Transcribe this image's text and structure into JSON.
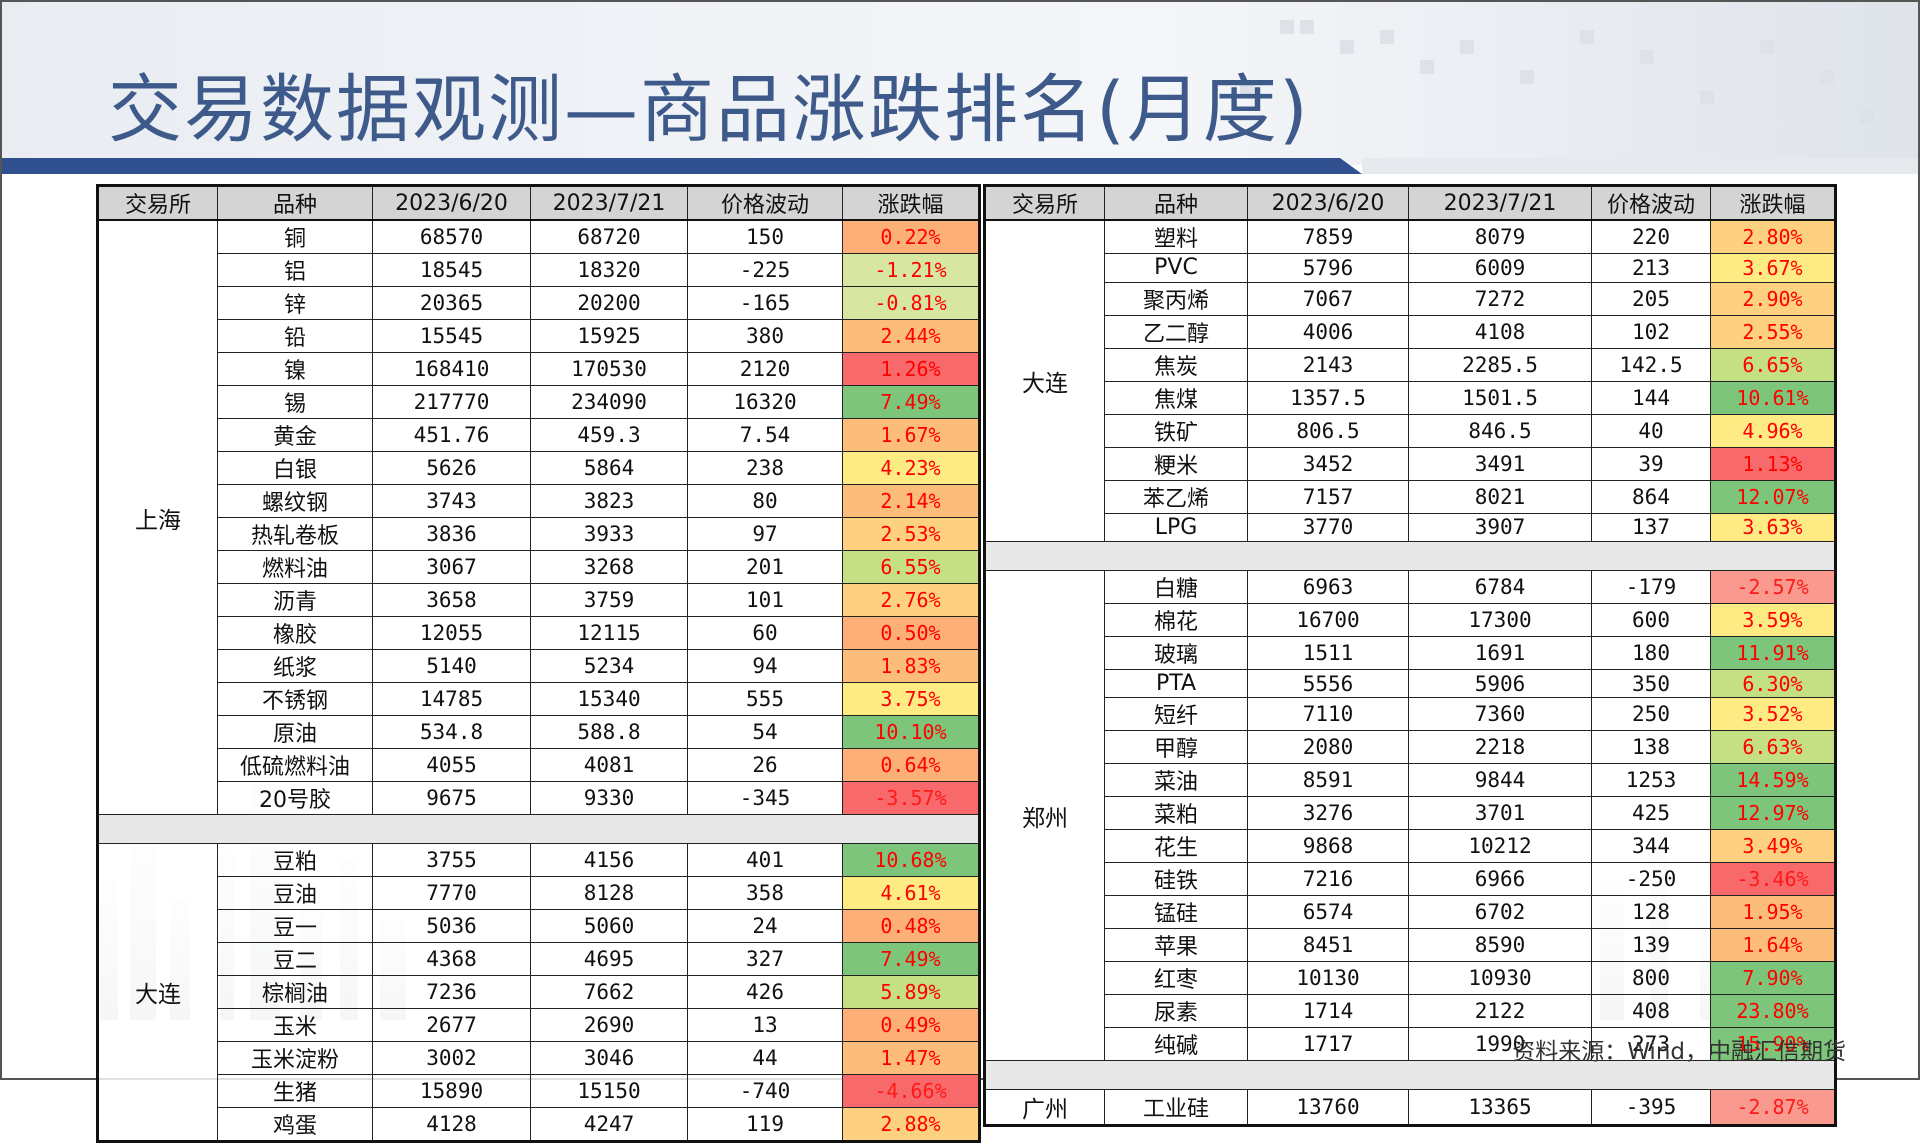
{
  "title": "交易数据观测—商品涨跌排名(月度)",
  "source": "资料来源：Wind，中融汇信期货",
  "headers": [
    "交易所",
    "品种",
    "2023/6/20",
    "2023/7/21",
    "价格波动",
    "涨跌幅"
  ],
  "left_groups": [
    {
      "exchange": "上海",
      "rows": [
        [
          "铜",
          "68570",
          "68720",
          "150",
          "0.22%"
        ],
        [
          "铝",
          "18545",
          "18320",
          "-225",
          "-1.21%"
        ],
        [
          "锌",
          "20365",
          "20200",
          "-165",
          "-0.81%"
        ],
        [
          "铅",
          "15545",
          "15925",
          "380",
          "2.44%"
        ],
        [
          "镍",
          "168410",
          "170530",
          "2120",
          "1.26%"
        ],
        [
          "锡",
          "217770",
          "234090",
          "16320",
          "7.49%"
        ],
        [
          "黄金",
          "451.76",
          "459.3",
          "7.54",
          "1.67%"
        ],
        [
          "白银",
          "5626",
          "5864",
          "238",
          "4.23%"
        ],
        [
          "螺纹钢",
          "3743",
          "3823",
          "80",
          "2.14%"
        ],
        [
          "热轧卷板",
          "3836",
          "3933",
          "97",
          "2.53%"
        ],
        [
          "燃料油",
          "3067",
          "3268",
          "201",
          "6.55%"
        ],
        [
          "沥青",
          "3658",
          "3759",
          "101",
          "2.76%"
        ],
        [
          "橡胶",
          "12055",
          "12115",
          "60",
          "0.50%"
        ],
        [
          "纸浆",
          "5140",
          "5234",
          "94",
          "1.83%"
        ],
        [
          "不锈钢",
          "14785",
          "15340",
          "555",
          "3.75%"
        ],
        [
          "原油",
          "534.8",
          "588.8",
          "54",
          "10.10%"
        ],
        [
          "低硫燃料油",
          "4055",
          "4081",
          "26",
          "0.64%"
        ],
        [
          "20号胶",
          "9675",
          "9330",
          "-345",
          "-3.57%"
        ]
      ]
    },
    {
      "exchange": "大连",
      "rows": [
        [
          "豆粕",
          "3755",
          "4156",
          "401",
          "10.68%"
        ],
        [
          "豆油",
          "7770",
          "8128",
          "358",
          "4.61%"
        ],
        [
          "豆一",
          "5036",
          "5060",
          "24",
          "0.48%"
        ],
        [
          "豆二",
          "4368",
          "4695",
          "327",
          "7.49%"
        ],
        [
          "棕榈油",
          "7236",
          "7662",
          "426",
          "5.89%"
        ],
        [
          "玉米",
          "2677",
          "2690",
          "13",
          "0.49%"
        ],
        [
          "玉米淀粉",
          "3002",
          "3046",
          "44",
          "1.47%"
        ],
        [
          "生猪",
          "15890",
          "15150",
          "-740",
          "-4.66%"
        ],
        [
          "鸡蛋",
          "4128",
          "4247",
          "119",
          "2.88%"
        ]
      ]
    }
  ],
  "right_groups": [
    {
      "exchange": "大连",
      "rows": [
        [
          "塑料",
          "7859",
          "8079",
          "220",
          "2.80%"
        ],
        [
          "PVC",
          "5796",
          "6009",
          "213",
          "3.67%"
        ],
        [
          "聚丙烯",
          "7067",
          "7272",
          "205",
          "2.90%"
        ],
        [
          "乙二醇",
          "4006",
          "4108",
          "102",
          "2.55%"
        ],
        [
          "焦炭",
          "2143",
          "2285.5",
          "142.5",
          "6.65%"
        ],
        [
          "焦煤",
          "1357.5",
          "1501.5",
          "144",
          "10.61%"
        ],
        [
          "铁矿",
          "806.5",
          "846.5",
          "40",
          "4.96%"
        ],
        [
          "粳米",
          "3452",
          "3491",
          "39",
          "1.13%"
        ],
        [
          "苯乙烯",
          "7157",
          "8021",
          "864",
          "12.07%"
        ],
        [
          "LPG",
          "3770",
          "3907",
          "137",
          "3.63%"
        ]
      ]
    },
    {
      "exchange": "郑州",
      "rows": [
        [
          "白糖",
          "6963",
          "6784",
          "-179",
          "-2.57%"
        ],
        [
          "棉花",
          "16700",
          "17300",
          "600",
          "3.59%"
        ],
        [
          "玻璃",
          "1511",
          "1691",
          "180",
          "11.91%"
        ],
        [
          "PTA",
          "5556",
          "5906",
          "350",
          "6.30%"
        ],
        [
          "短纤",
          "7110",
          "7360",
          "250",
          "3.52%"
        ],
        [
          "甲醇",
          "2080",
          "2218",
          "138",
          "6.63%"
        ],
        [
          "菜油",
          "8591",
          "9844",
          "1253",
          "14.59%"
        ],
        [
          "菜粕",
          "3276",
          "3701",
          "425",
          "12.97%"
        ],
        [
          "花生",
          "9868",
          "10212",
          "344",
          "3.49%"
        ],
        [
          "硅铁",
          "7216",
          "6966",
          "-250",
          "-3.46%"
        ],
        [
          "锰硅",
          "6574",
          "6702",
          "128",
          "1.95%"
        ],
        [
          "苹果",
          "8451",
          "8590",
          "139",
          "1.64%"
        ],
        [
          "红枣",
          "10130",
          "10930",
          "800",
          "7.90%"
        ],
        [
          "尿素",
          "1714",
          "2122",
          "408",
          "23.80%"
        ],
        [
          "纯碱",
          "1717",
          "1990",
          "273",
          "15.90%"
        ]
      ]
    },
    {
      "exchange": "广州",
      "rows": [
        [
          "工业硅",
          "13760",
          "13365",
          "-395",
          "-2.87%"
        ]
      ]
    }
  ]
}
